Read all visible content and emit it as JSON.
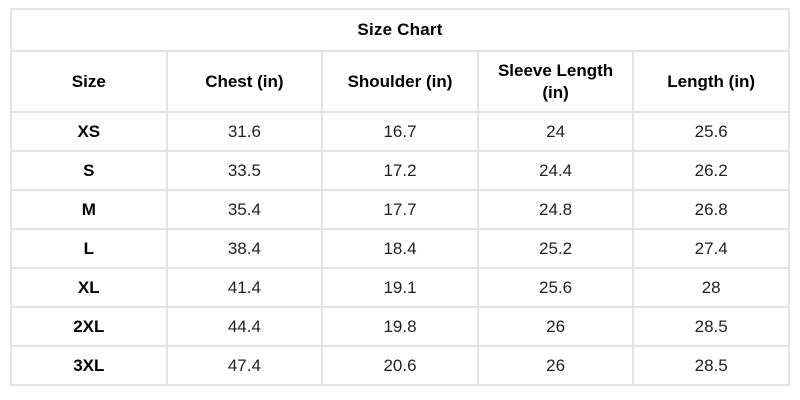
{
  "chart_data": {
    "type": "table",
    "title": "Size Chart",
    "columns": [
      "Size",
      "Chest (in)",
      "Shoulder (in)",
      "Sleeve Length (in)",
      "Length (in)"
    ],
    "rows": [
      [
        "XS",
        "31.6",
        "16.7",
        "24",
        "25.6"
      ],
      [
        "S",
        "33.5",
        "17.2",
        "24.4",
        "26.2"
      ],
      [
        "M",
        "35.4",
        "17.7",
        "24.8",
        "26.8"
      ],
      [
        "L",
        "38.4",
        "18.4",
        "25.2",
        "27.4"
      ],
      [
        "XL",
        "41.4",
        "19.1",
        "25.6",
        "28"
      ],
      [
        "2XL",
        "44.4",
        "19.8",
        "26",
        "28.5"
      ],
      [
        "3XL",
        "47.4",
        "20.6",
        "26",
        "28.5"
      ]
    ],
    "layout": {
      "grid": true,
      "border_color": "#e3e3e3",
      "background": "#ffffff",
      "title_position": "top-center"
    }
  }
}
